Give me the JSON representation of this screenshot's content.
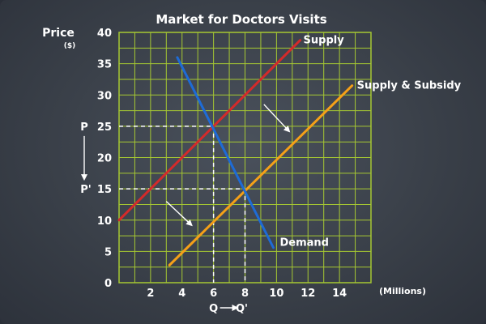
{
  "chart_data": {
    "type": "line",
    "title": "Market for Doctors Visits",
    "ylabel": "Price",
    "ylabel_unit": "($)",
    "xlabel": "(Millions)",
    "xlim": [
      0,
      16
    ],
    "ylim": [
      0,
      40
    ],
    "x_ticks": [
      "2",
      "4",
      "6",
      "8",
      "10",
      "12",
      "14"
    ],
    "y_ticks": [
      "0",
      "5",
      "10",
      "15",
      "20",
      "25",
      "30",
      "35",
      "40"
    ],
    "x_tick_values": [
      2,
      4,
      6,
      8,
      10,
      12,
      14
    ],
    "y_tick_values": [
      0,
      5,
      10,
      15,
      20,
      25,
      30,
      35,
      40
    ],
    "grid": true,
    "series": [
      {
        "name": "Supply",
        "color": "#d42a2a",
        "points": [
          [
            0,
            10
          ],
          [
            11.5,
            38.75
          ]
        ]
      },
      {
        "name": "Supply & Subsidy",
        "color": "#f5a018",
        "points": [
          [
            3.2,
            2.8
          ],
          [
            14.8,
            31.5
          ]
        ]
      },
      {
        "name": "Demand",
        "color": "#1e6bd6",
        "points": [
          [
            3.7,
            36
          ],
          [
            9.8,
            5.6
          ]
        ]
      }
    ],
    "equilibria": [
      {
        "x": 6,
        "y": 25,
        "price_label": "P",
        "quantity_label": "Q"
      },
      {
        "x": 8,
        "y": 15,
        "price_label": "P'",
        "quantity_label": "Q'"
      }
    ],
    "annotations": {
      "price_arrow": {
        "from": "P",
        "to": "P'"
      },
      "quantity_arrow": {
        "from": "Q",
        "to": "Q'"
      }
    },
    "shift_arrows": [
      {
        "from": [
          9.2,
          28.5
        ],
        "to": [
          10.8,
          24.2
        ]
      },
      {
        "from": [
          3,
          13
        ],
        "to": [
          4.6,
          9.2
        ]
      }
    ],
    "colors": {
      "grid": "#a6c832",
      "axis": "#a6c832",
      "guides": "#ffffff",
      "arrows": "#ffffff"
    }
  }
}
